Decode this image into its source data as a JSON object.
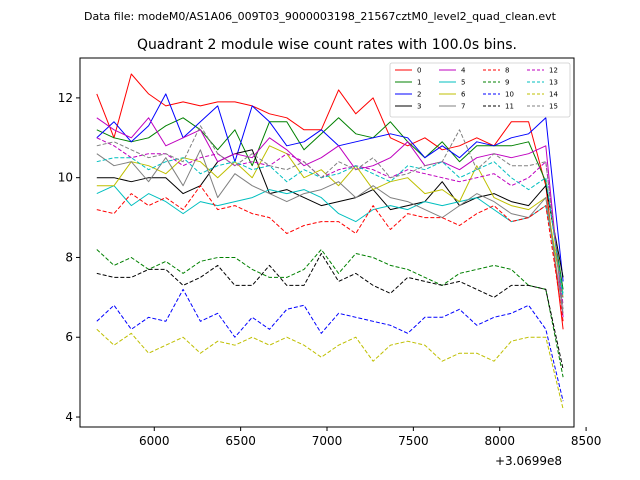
{
  "chart_data": {
    "type": "line",
    "suptitle": "Data file: modeM0/AS1A06_009T03_9000003198_21567cztM0_level2_quad_clean.evt",
    "title": "Quadrant 2 module wise count rates with 100.0s bins.",
    "xlabel": "",
    "ylabel": "",
    "offset_text": "+3.0699e8",
    "xlim": [
      5570,
      8430
    ],
    "ylim": [
      3.75,
      13.0
    ],
    "xticks": [
      6000,
      6500,
      7000,
      7500,
      8000,
      8500
    ],
    "yticks": [
      4,
      6,
      8,
      10,
      12
    ],
    "legend_position": "top-right",
    "x": [
      5667,
      5767,
      5867,
      5967,
      6067,
      6167,
      6267,
      6367,
      6467,
      6567,
      6667,
      6767,
      6867,
      6967,
      7067,
      7167,
      7267,
      7367,
      7467,
      7567,
      7667,
      7767,
      7867,
      7967,
      8067,
      8167,
      8267,
      8367
    ],
    "series": [
      {
        "name": "0",
        "color": "#ff0000",
        "dash": "solid",
        "values": [
          12.1,
          11.0,
          12.6,
          12.1,
          11.8,
          11.9,
          11.8,
          11.9,
          11.9,
          11.8,
          11.6,
          11.5,
          11.2,
          11.2,
          12.2,
          11.6,
          12.0,
          11.0,
          10.8,
          11.0,
          10.7,
          10.8,
          11.0,
          10.8,
          11.4,
          11.4,
          9.8,
          6.2
        ]
      },
      {
        "name": "1",
        "color": "#008000",
        "dash": "solid",
        "values": [
          11.2,
          11.0,
          10.9,
          11.0,
          11.3,
          11.5,
          11.2,
          10.7,
          11.2,
          10.3,
          11.4,
          11.4,
          10.7,
          11.1,
          11.5,
          11.1,
          11.0,
          11.4,
          10.9,
          10.5,
          10.9,
          10.4,
          10.8,
          10.8,
          10.8,
          10.9,
          9.9,
          7.2
        ]
      },
      {
        "name": "2",
        "color": "#0000ff",
        "dash": "solid",
        "values": [
          11.0,
          11.4,
          10.9,
          11.3,
          12.1,
          11.0,
          11.4,
          11.8,
          10.4,
          11.8,
          11.4,
          10.8,
          10.9,
          11.2,
          10.8,
          10.9,
          11.0,
          11.1,
          11.0,
          10.5,
          10.8,
          10.5,
          10.9,
          10.8,
          11.0,
          11.1,
          11.5,
          7.4
        ]
      },
      {
        "name": "3",
        "color": "#000000",
        "dash": "solid",
        "values": [
          10.0,
          10.0,
          9.9,
          10.0,
          10.0,
          9.6,
          9.8,
          10.4,
          10.6,
          10.7,
          9.6,
          9.7,
          9.5,
          9.3,
          9.4,
          9.5,
          9.7,
          9.2,
          9.3,
          9.4,
          9.9,
          9.3,
          9.5,
          9.6,
          9.4,
          9.3,
          9.8,
          7.5
        ]
      },
      {
        "name": "4",
        "color": "#bf00bf",
        "dash": "solid",
        "values": [
          11.5,
          11.2,
          11.0,
          11.5,
          10.8,
          11.0,
          11.2,
          10.4,
          10.6,
          10.5,
          11.0,
          10.7,
          10.3,
          10.5,
          10.8,
          10.2,
          10.3,
          10.5,
          10.9,
          10.3,
          10.4,
          10.2,
          10.5,
          10.6,
          10.5,
          10.6,
          10.8,
          6.5
        ]
      },
      {
        "name": "5",
        "color": "#00bfbf",
        "dash": "solid",
        "values": [
          9.6,
          9.8,
          9.3,
          9.6,
          9.4,
          9.1,
          9.4,
          9.3,
          9.4,
          9.5,
          9.7,
          9.6,
          9.7,
          9.5,
          9.1,
          8.9,
          9.2,
          9.3,
          9.2,
          9.4,
          9.3,
          9.4,
          9.5,
          9.2,
          8.9,
          9.0,
          9.3,
          7.1
        ]
      },
      {
        "name": "6",
        "color": "#bfbf00",
        "dash": "solid",
        "values": [
          9.8,
          9.8,
          10.4,
          10.3,
          10.1,
          10.5,
          10.4,
          10.0,
          10.4,
          10.0,
          10.8,
          10.6,
          10.0,
          10.2,
          9.8,
          10.3,
          9.7,
          9.9,
          10.0,
          9.6,
          9.7,
          9.4,
          10.3,
          9.5,
          9.3,
          9.2,
          9.5,
          7.0
        ]
      },
      {
        "name": "7",
        "color": "#808080",
        "dash": "solid",
        "values": [
          10.6,
          10.3,
          10.4,
          9.9,
          10.5,
          9.8,
          10.7,
          9.5,
          10.1,
          9.8,
          9.6,
          9.4,
          9.6,
          9.7,
          9.9,
          9.5,
          9.8,
          9.5,
          9.4,
          9.2,
          9.0,
          9.3,
          9.6,
          9.4,
          9.1,
          9.0,
          9.5,
          6.6
        ]
      },
      {
        "name": "8",
        "color": "#ff0000",
        "dash": "dashed",
        "values": [
          9.2,
          9.1,
          9.6,
          9.3,
          9.5,
          9.2,
          9.8,
          9.2,
          9.3,
          9.1,
          9.0,
          8.6,
          8.8,
          8.9,
          8.9,
          8.6,
          9.3,
          8.7,
          9.1,
          9.0,
          9.0,
          8.8,
          9.1,
          9.3,
          8.9,
          9.0,
          9.3,
          6.4
        ]
      },
      {
        "name": "9",
        "color": "#008000",
        "dash": "dashed",
        "values": [
          8.2,
          7.8,
          8.0,
          7.7,
          7.9,
          7.6,
          7.9,
          8.0,
          8.0,
          7.7,
          7.5,
          7.5,
          7.7,
          8.2,
          7.6,
          8.1,
          8.0,
          7.8,
          7.7,
          7.5,
          7.3,
          7.6,
          7.7,
          7.8,
          7.7,
          7.3,
          7.2,
          5.0
        ]
      },
      {
        "name": "10",
        "color": "#0000ff",
        "dash": "dashed",
        "values": [
          6.4,
          6.8,
          6.2,
          6.5,
          6.4,
          7.2,
          6.4,
          6.6,
          6.0,
          6.5,
          6.2,
          6.7,
          6.8,
          6.1,
          6.6,
          6.5,
          6.4,
          6.3,
          6.1,
          6.5,
          6.5,
          6.7,
          6.3,
          6.5,
          6.6,
          6.8,
          6.2,
          4.4
        ]
      },
      {
        "name": "11",
        "color": "#000000",
        "dash": "dashed",
        "values": [
          7.6,
          7.5,
          7.5,
          7.7,
          7.7,
          7.3,
          7.5,
          7.8,
          7.3,
          7.3,
          7.8,
          7.3,
          7.3,
          8.1,
          7.4,
          7.6,
          7.3,
          7.1,
          7.5,
          7.4,
          7.3,
          7.4,
          7.2,
          7.0,
          7.3,
          7.3,
          7.2,
          5.2
        ]
      },
      {
        "name": "12",
        "color": "#bf00bf",
        "dash": "dashed",
        "values": [
          11.0,
          10.8,
          10.5,
          10.6,
          10.6,
          10.3,
          10.5,
          10.6,
          10.3,
          10.4,
          10.3,
          10.6,
          10.4,
          10.0,
          10.2,
          10.3,
          10.2,
          10.0,
          10.2,
          10.1,
          10.0,
          9.9,
          10.0,
          10.1,
          9.8,
          10.0,
          10.4,
          6.8
        ]
      },
      {
        "name": "13",
        "color": "#00bfbf",
        "dash": "dashed",
        "values": [
          10.4,
          10.5,
          10.5,
          10.2,
          10.4,
          10.5,
          10.1,
          10.3,
          10.4,
          10.2,
          10.3,
          9.9,
          10.2,
          10.0,
          10.1,
          10.3,
          10.1,
          9.9,
          10.3,
          10.2,
          10.4,
          10.0,
          10.2,
          10.4,
          10.0,
          9.7,
          10.0,
          7.0
        ]
      },
      {
        "name": "14",
        "color": "#bfbf00",
        "dash": "dashed",
        "values": [
          6.2,
          5.8,
          6.1,
          5.6,
          5.8,
          6.0,
          5.6,
          5.9,
          5.8,
          6.0,
          5.8,
          6.0,
          5.8,
          5.5,
          5.8,
          6.0,
          5.4,
          5.8,
          5.9,
          5.8,
          5.4,
          5.6,
          5.6,
          5.4,
          5.9,
          6.0,
          6.0,
          4.2
        ]
      },
      {
        "name": "15",
        "color": "#808080",
        "dash": "dashed",
        "values": [
          10.8,
          10.9,
          10.7,
          10.5,
          10.6,
          10.4,
          11.3,
          10.6,
          10.3,
          10.6,
          10.3,
          10.2,
          10.4,
          10.0,
          10.4,
          10.2,
          10.5,
          10.0,
          10.1,
          10.3,
          10.4,
          11.2,
          10.2,
          10.6,
          10.3,
          10.3,
          10.4,
          6.7
        ]
      }
    ]
  }
}
